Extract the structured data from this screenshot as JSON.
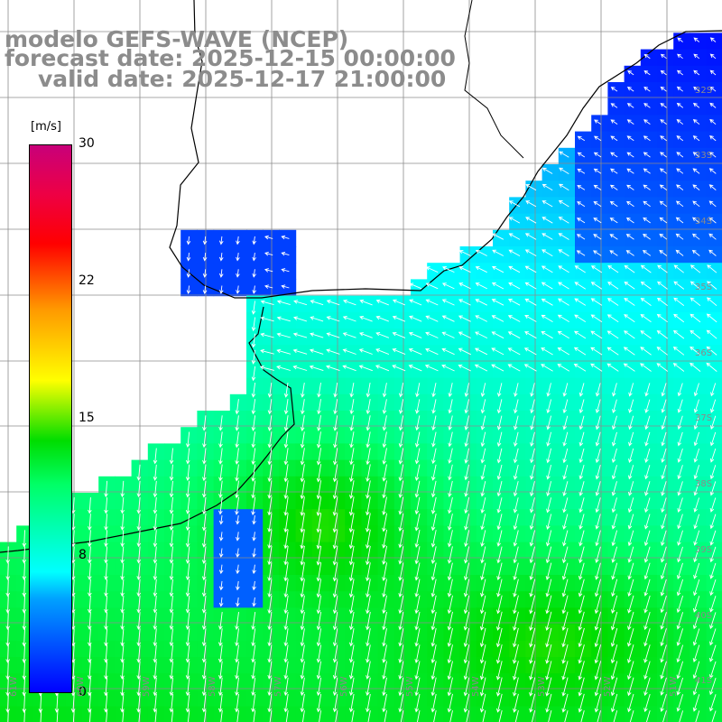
{
  "titles": {
    "model": "modelo GEFS-WAVE (NCEP)",
    "forecast": "forecast date: 2025-12-15 00:00:00",
    "valid": "valid date: 2025-12-17 21:00:00"
  },
  "colorbar": {
    "unit": "[m/s]",
    "ticks": [
      {
        "label": "30",
        "value": 30
      },
      {
        "label": "22",
        "value": 22
      },
      {
        "label": "15",
        "value": 15
      },
      {
        "label": "8",
        "value": 8
      },
      {
        "label": "0",
        "value": 0
      }
    ],
    "min": 0,
    "max": 30
  },
  "lat_labels": [
    "32S",
    "33S",
    "34S",
    "35S",
    "36S",
    "37S",
    "38S",
    "39S",
    "40S",
    "41S"
  ],
  "lon_labels": [
    "61W",
    "60W",
    "59W",
    "58W",
    "57W",
    "56W",
    "55W",
    "54W",
    "53W",
    "52W",
    "51W"
  ],
  "colors": {
    "land": "#ffffff",
    "grid": "#8c8c8c",
    "title": "#8c8c8c",
    "arrow": "#ffffff"
  }
}
